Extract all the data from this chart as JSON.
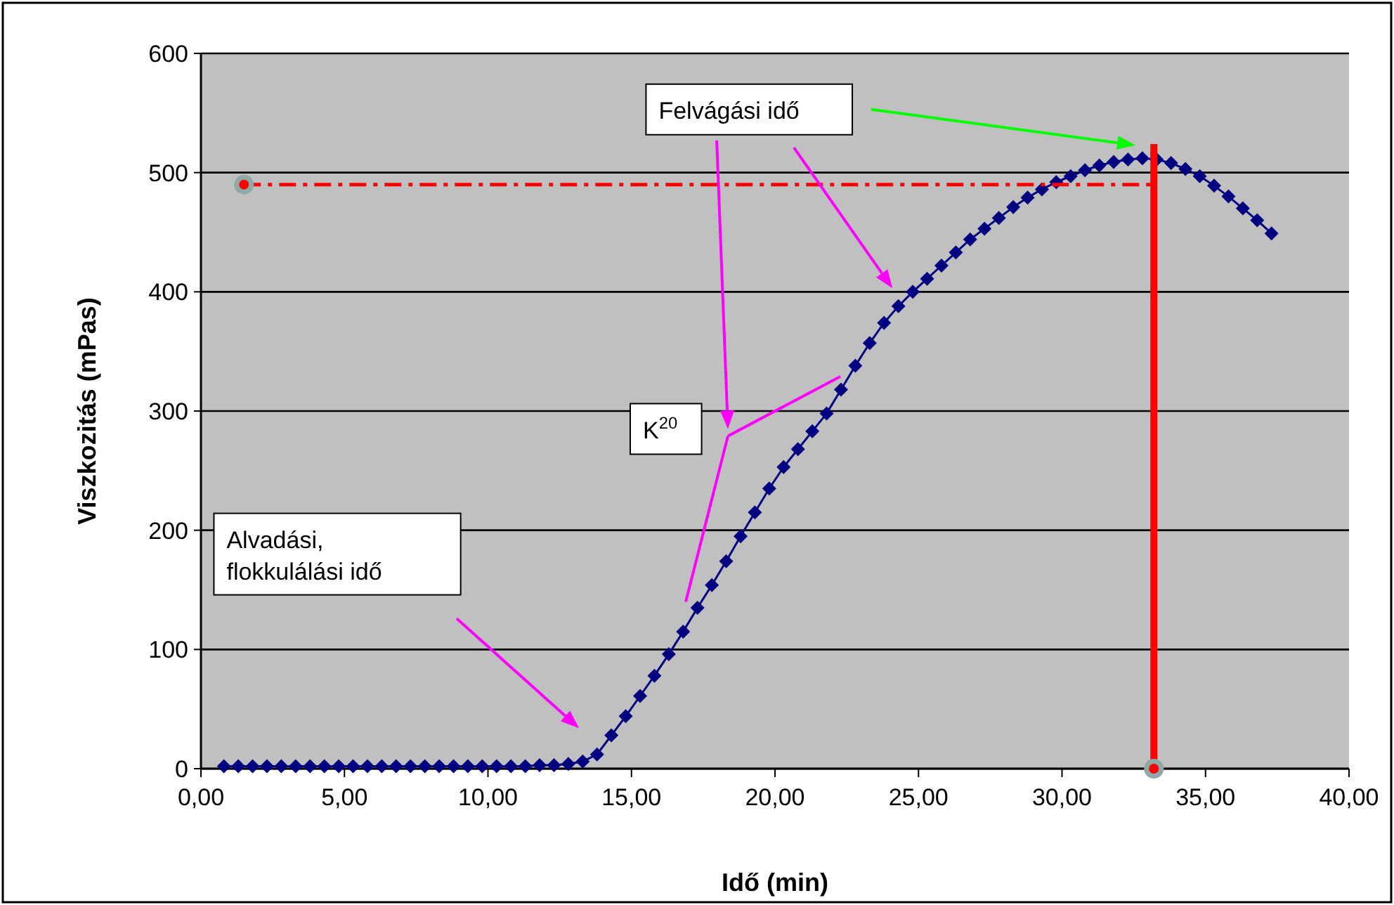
{
  "chart_data": {
    "type": "line",
    "xlabel": "Idő (min)",
    "ylabel": "Viszkozitás (mPas)",
    "xlim": [
      0,
      40
    ],
    "xticks": [
      {
        "value": 0,
        "label": "0,00"
      },
      {
        "value": 5,
        "label": "5,00"
      },
      {
        "value": 10,
        "label": "10,00"
      },
      {
        "value": 15,
        "label": "15,00"
      },
      {
        "value": 20,
        "label": "20,00"
      },
      {
        "value": 25,
        "label": "25,00"
      },
      {
        "value": 30,
        "label": "30,00"
      },
      {
        "value": 35,
        "label": "35,00"
      },
      {
        "value": 40,
        "label": "40,00"
      }
    ],
    "ylim": [
      0,
      600
    ],
    "yticks": [
      0,
      100,
      200,
      300,
      400,
      500,
      600
    ],
    "grid": "y",
    "series": [
      {
        "color": "#000080",
        "marker": "diamond",
        "line_style": "solid",
        "x": [
          0.8,
          1.3,
          1.8,
          2.3,
          2.8,
          3.3,
          3.8,
          4.3,
          4.8,
          5.3,
          5.8,
          6.3,
          6.8,
          7.3,
          7.8,
          8.3,
          8.8,
          9.3,
          9.8,
          10.3,
          10.8,
          11.3,
          11.8,
          12.3,
          12.8,
          13.3,
          13.8,
          14.3,
          14.8,
          15.3,
          15.8,
          16.3,
          16.8,
          17.3,
          17.8,
          18.3,
          18.8,
          19.3,
          19.8,
          20.3,
          20.8,
          21.3,
          21.8,
          22.3,
          22.8,
          23.3,
          23.8,
          24.3,
          24.8,
          25.3,
          25.8,
          26.3,
          26.8,
          27.3,
          27.8,
          28.3,
          28.8,
          29.3,
          29.8,
          30.3,
          30.8,
          31.3,
          31.8,
          32.3,
          32.8,
          33.3,
          33.8,
          34.3,
          34.8,
          35.3,
          35.8,
          36.3,
          36.8,
          37.3
        ],
        "values": [
          2,
          2,
          2,
          2,
          2,
          2,
          2,
          2,
          2,
          2,
          2,
          2,
          2,
          2,
          2,
          2,
          2,
          2,
          2,
          2,
          2,
          2,
          3,
          3,
          4,
          6,
          12,
          28,
          44,
          61,
          78,
          96,
          115,
          135,
          154,
          174,
          195,
          215,
          235,
          253,
          268,
          283,
          298,
          318,
          338,
          357,
          374,
          388,
          400,
          411,
          422,
          433,
          444,
          453,
          462,
          471,
          479,
          486,
          492,
          497,
          502,
          506,
          509,
          511,
          512,
          511,
          508,
          503,
          497,
          489,
          480,
          470,
          460,
          449
        ]
      },
      {
        "type": "line",
        "color": "#ff0000",
        "line_style": "dashed",
        "x": [
          1.5,
          33.2
        ],
        "values": [
          490,
          490
        ]
      },
      {
        "type": "line",
        "color": "#ff0000",
        "line_style": "solid",
        "x": [
          33.2,
          33.2
        ],
        "values": [
          0,
          524
        ]
      },
      {
        "type": "scatter",
        "color": "#8fa8a8",
        "marker": "circle",
        "x": [
          1.5,
          33.2
        ],
        "values": [
          490,
          0
        ]
      }
    ],
    "annotations": [
      "Felvágási idő",
      "K$^{20}$",
      "Alvadási, flokkulálási idő"
    ]
  }
}
